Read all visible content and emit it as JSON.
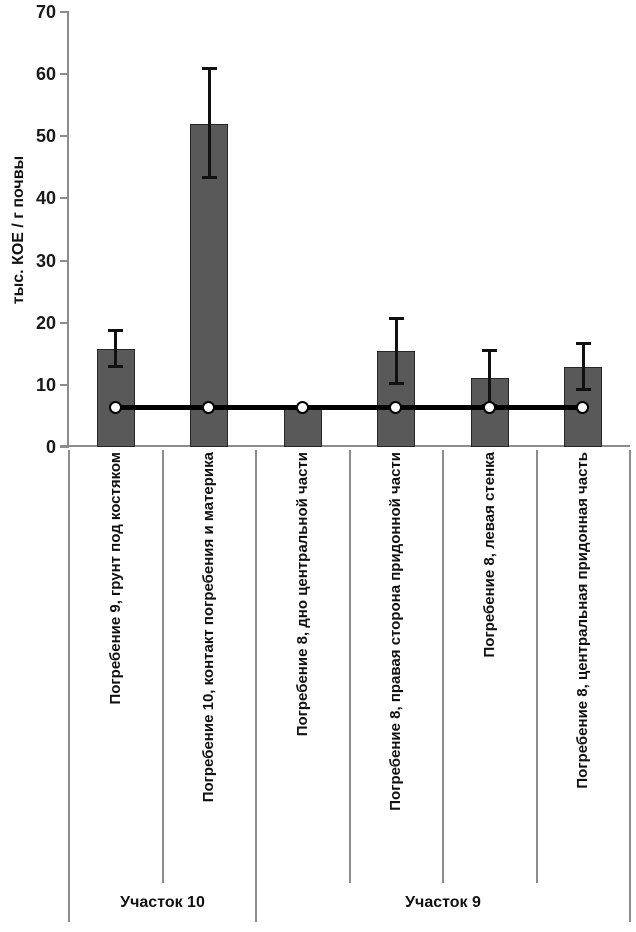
{
  "chart_data": {
    "type": "bar",
    "title": "",
    "xlabel": "",
    "ylabel": "тыс. КОЕ / г почвы",
    "ylim": [
      0,
      70
    ],
    "yticks": [
      0,
      10,
      20,
      30,
      40,
      50,
      60,
      70
    ],
    "grid": false,
    "legend": "none",
    "categories": [
      "Погребение 9, грунт под костяком",
      "Погребение 10, контакт погребения и материка",
      "Погребение 8, дно центральной части",
      "Погребение 8, правая сторона придонной части",
      "Погребение 8, левая стенка",
      "Погребение 8, центральная придонная часть"
    ],
    "groups": [
      {
        "label": "Участок 10",
        "from": 0,
        "to": 2
      },
      {
        "label": "Участок 9",
        "from": 2,
        "to": 6
      }
    ],
    "series": [
      {
        "name": "soil-cfu-bars",
        "type": "bar",
        "values": [
          15.7,
          52,
          6.4,
          15.4,
          11.1,
          12.8
        ],
        "error_low": [
          12.9,
          43.3,
          null,
          10.2,
          6.7,
          9.3
        ],
        "error_high": [
          18.8,
          60.9,
          null,
          20.7,
          15.6,
          16.6
        ],
        "color": "#595959"
      },
      {
        "name": "control-reference-line",
        "type": "line",
        "values": [
          6.3,
          6.3,
          6.3,
          6.3,
          6.3,
          6.3
        ],
        "color": "#000000",
        "marker": "white-circle"
      }
    ],
    "colors": {
      "bar_fill": "#595959",
      "bar_border": "#262626",
      "error_bar": "#111111",
      "reference_line": "#000000",
      "marker_fill": "#ffffff",
      "marker_border": "#000000",
      "axis": "#8c8c8c",
      "text": "#111111",
      "background": "#ffffff"
    }
  }
}
